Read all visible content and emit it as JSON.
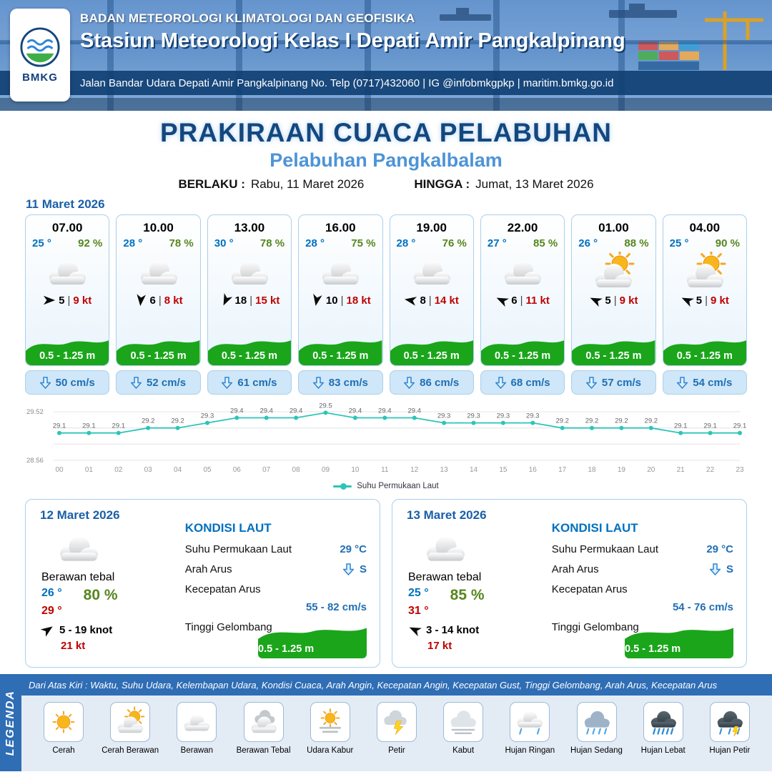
{
  "header": {
    "org": "BADAN METEOROLOGI KLIMATOLOGI DAN GEOFISIKA",
    "station": "Stasiun Meteorologi Kelas I Depati Amir Pangkalpinang",
    "address": "Jalan Bandar Udara Depati Amir Pangkalpinang No. Telp (0717)432060 | IG @infobmkgpkp | maritim.bmkg.go.id",
    "logo_text": "BMKG"
  },
  "title": {
    "main": "PRAKIRAAN CUACA PELABUHAN",
    "sub": "Pelabuhan Pangkalbalam",
    "berlaku_label": "BERLAKU :",
    "berlaku_value": "Rabu, 11 Maret 2026",
    "hingga_label": "HINGGA :",
    "hingga_value": "Jumat, 13 Maret 2026"
  },
  "day1": {
    "date": "11 Maret 2026",
    "sep": "|",
    "cards": [
      {
        "time": "07.00",
        "temp": "25 °",
        "rh": "92 %",
        "icon": "cloud",
        "wind_dir": 0,
        "wind": "5",
        "gust": "9 kt",
        "wave": "0.5 - 1.25 m",
        "current": "50 cm/s"
      },
      {
        "time": "10.00",
        "temp": "28 °",
        "rh": "78 %",
        "icon": "cloud",
        "wind_dir": 95,
        "wind": "6",
        "gust": "8 kt",
        "wave": "0.5 - 1.25 m",
        "current": "52 cm/s"
      },
      {
        "time": "13.00",
        "temp": "30 °",
        "rh": "78 %",
        "icon": "cloud",
        "wind_dir": 115,
        "wind": "18",
        "gust": "15 kt",
        "wave": "0.5 - 1.25 m",
        "current": "61 cm/s"
      },
      {
        "time": "16.00",
        "temp": "28 °",
        "rh": "75 %",
        "icon": "cloud",
        "wind_dir": 100,
        "wind": "10",
        "gust": "18 kt",
        "wave": "0.5 - 1.25 m",
        "current": "83 cm/s"
      },
      {
        "time": "19.00",
        "temp": "28 °",
        "rh": "76 %",
        "icon": "cloud",
        "wind_dir": 190,
        "wind": "8",
        "gust": "14 kt",
        "wave": "0.5 - 1.25 m",
        "current": "86 cm/s"
      },
      {
        "time": "22.00",
        "temp": "27 °",
        "rh": "85 %",
        "icon": "cloud",
        "wind_dir": 205,
        "wind": "6",
        "gust": "11 kt",
        "wave": "0.5 - 1.25 m",
        "current": "68 cm/s"
      },
      {
        "time": "01.00",
        "temp": "26 °",
        "rh": "88 %",
        "icon": "sun-cloud",
        "wind_dir": 205,
        "wind": "5",
        "gust": "9 kt",
        "wave": "0.5 - 1.25 m",
        "current": "57 cm/s"
      },
      {
        "time": "04.00",
        "temp": "25 °",
        "rh": "90 %",
        "icon": "sun-cloud",
        "wind_dir": 205,
        "wind": "5",
        "gust": "9 kt",
        "wave": "0.5 - 1.25 m",
        "current": "54 cm/s"
      }
    ]
  },
  "chart_data": {
    "type": "line",
    "legend": "Suhu Permukaan Laut",
    "x": [
      "00",
      "01",
      "02",
      "03",
      "04",
      "05",
      "06",
      "07",
      "08",
      "09",
      "10",
      "11",
      "12",
      "13",
      "14",
      "15",
      "16",
      "17",
      "18",
      "19",
      "20",
      "21",
      "22",
      "23"
    ],
    "values": [
      29.1,
      29.1,
      29.1,
      29.2,
      29.2,
      29.3,
      29.4,
      29.4,
      29.4,
      29.5,
      29.4,
      29.4,
      29.4,
      29.3,
      29.3,
      29.3,
      29.3,
      29.2,
      29.2,
      29.2,
      29.2,
      29.1,
      29.1,
      29.1
    ],
    "ylim": [
      28.56,
      29.52
    ],
    "color": "#2cc5b8",
    "grid": true,
    "legend_position": "bottom"
  },
  "days": [
    {
      "date": "12 Maret 2026",
      "icon": "cloud",
      "condition": "Berawan tebal",
      "tmin": "26 °",
      "tmax": "29 °",
      "rh": "80 %",
      "wind_dir": -35,
      "wind": "5 - 19 knot",
      "gust": "21 kt",
      "sea": {
        "heading": "KONDISI LAUT",
        "sst_label": "Suhu Permukaan Laut",
        "sst": "29 °C",
        "dir_label": "Arah Arus",
        "dir": "S",
        "speed_label": "Kecepatan Arus",
        "speed": "55 - 82 cm/s",
        "wave_label": "Tinggi Gelombang",
        "wave": "0.5 - 1.25 m"
      }
    },
    {
      "date": "13 Maret 2026",
      "icon": "cloud",
      "condition": "Berawan tebal",
      "tmin": "25 °",
      "tmax": "31 °",
      "rh": "85 %",
      "wind_dir": 205,
      "wind": "3 - 14 knot",
      "gust": "17 kt",
      "sea": {
        "heading": "KONDISI LAUT",
        "sst_label": "Suhu Permukaan Laut",
        "sst": "29 °C",
        "dir_label": "Arah Arus",
        "dir": "S",
        "speed_label": "Kecepatan Arus",
        "speed": "54 - 76 cm/s",
        "wave_label": "Tinggi Gelombang",
        "wave": "0.5 - 1.25 m"
      }
    }
  ],
  "legend": {
    "title": "LEGENDA",
    "description": "Dari Atas Kiri : Waktu, Suhu Udara, Kelembapan Udara, Kondisi Cuaca, Arah Angin, Kecepatan Angin, Kecepatan Gust, Tinggi Gelombang, Arah Arus, Kecepatan Arus",
    "items": [
      {
        "label": "Cerah",
        "icon": "sun"
      },
      {
        "label": "Cerah Berawan",
        "icon": "sun-cloud"
      },
      {
        "label": "Berawan",
        "icon": "cloud"
      },
      {
        "label": "Berawan Tebal",
        "icon": "clouds"
      },
      {
        "label": "Udara Kabur",
        "icon": "haze"
      },
      {
        "label": "Petir",
        "icon": "bolt"
      },
      {
        "label": "Kabut",
        "icon": "fog"
      },
      {
        "label": "Hujan Ringan",
        "icon": "rain-light"
      },
      {
        "label": "Hujan Sedang",
        "icon": "rain-mid"
      },
      {
        "label": "Hujan Lebat",
        "icon": "rain-heavy"
      },
      {
        "label": "Hujan Petir",
        "icon": "storm"
      }
    ]
  }
}
